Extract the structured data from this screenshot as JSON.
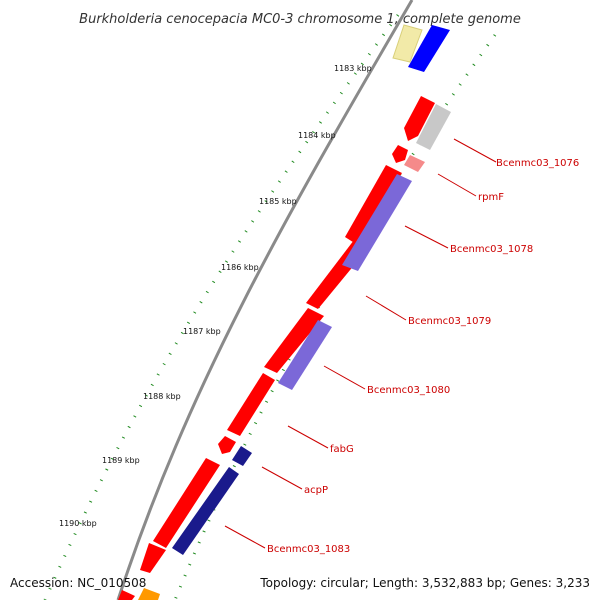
{
  "title": "Burkholderia cenocepacia MC0-3 chromosome 1, complete genome",
  "ticks": [
    "1183 kbp",
    "1184 kbp",
    "1185 kbp",
    "1186 kbp",
    "1187 kbp",
    "1188 kbp",
    "1189 kbp",
    "1190 kbp"
  ],
  "genes": [
    "Bcenmc03_1076",
    "rpmF",
    "Bcenmc03_1078",
    "Bcenmc03_1079",
    "Bcenmc03_1080",
    "fabG",
    "acpP",
    "Bcenmc03_1083"
  ],
  "footer": {
    "accession": "Accession: NC_010508",
    "topology": "Topology: circular; Length: 3,532,883 bp; Genes: 3,233"
  },
  "colors": {
    "backbone": "#8a8a8a",
    "cds_forward": "#ff0000",
    "gene_blue": "#7b68d8",
    "gene_navy": "#1a1a8c",
    "trna": "#0000ff",
    "pseudo": "#f2eaa8",
    "grey_feature": "#c8c8c8",
    "rna_pink": "#f58a8a",
    "orange": "#ff9900",
    "ticks": "#1f8a1f",
    "label": "#cc0000"
  }
}
